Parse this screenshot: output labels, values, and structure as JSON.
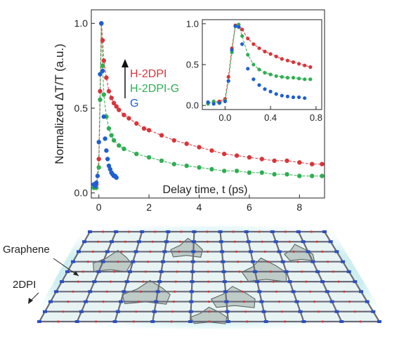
{
  "colors": {
    "H-2DPI": "#d8353a",
    "H-2DPI-G": "#2fae52",
    "G": "#1f5fd0"
  },
  "chart_data": [
    {
      "type": "scatter",
      "xlabel": "Delay time, t (ps)",
      "ylabel": "Normalized ΔT/T (a.u.)",
      "xlim": [
        -0.3,
        9.0
      ],
      "ylim": [
        -0.03,
        1.08
      ],
      "xticks": [
        "0",
        "2",
        "4",
        "6",
        "8"
      ],
      "xtick_values": [
        0,
        2,
        4,
        6,
        8
      ],
      "yticks": [
        "0.0",
        "0.5",
        "1.0"
      ],
      "ytick_values": [
        0,
        0.5,
        1.0
      ],
      "legend": [
        "H-2DPI",
        "H-2DPI-G",
        "G"
      ],
      "legend_position": "upper-middle",
      "series": [
        {
          "name": "H-2DPI",
          "x": [
            -0.2,
            -0.1,
            0.0,
            0.05,
            0.1,
            0.15,
            0.2,
            0.3,
            0.4,
            0.5,
            0.6,
            0.7,
            0.8,
            1.0,
            1.2,
            1.5,
            1.8,
            2.0,
            2.5,
            3.0,
            3.5,
            4.0,
            4.5,
            5.0,
            5.5,
            6.0,
            6.5,
            7.0,
            7.5,
            8.0,
            8.5,
            8.9
          ],
          "y": [
            0.05,
            0.05,
            0.2,
            0.6,
            1.0,
            0.9,
            0.78,
            0.68,
            0.6,
            0.56,
            0.53,
            0.51,
            0.49,
            0.46,
            0.44,
            0.41,
            0.38,
            0.37,
            0.34,
            0.31,
            0.29,
            0.27,
            0.25,
            0.23,
            0.22,
            0.21,
            0.2,
            0.19,
            0.19,
            0.18,
            0.17,
            0.17
          ],
          "fit": true
        },
        {
          "name": "H-2DPI-G",
          "x": [
            -0.2,
            -0.1,
            0.0,
            0.05,
            0.1,
            0.15,
            0.2,
            0.3,
            0.4,
            0.5,
            0.6,
            0.8,
            1.0,
            1.5,
            2.0,
            2.5,
            3.0,
            3.5,
            4.0,
            4.5,
            5.0,
            5.5,
            6.0,
            6.5,
            7.0,
            7.5,
            8.0,
            8.5,
            8.9
          ],
          "y": [
            0.03,
            0.03,
            0.15,
            0.55,
            1.0,
            0.75,
            0.58,
            0.45,
            0.38,
            0.34,
            0.31,
            0.28,
            0.26,
            0.23,
            0.21,
            0.19,
            0.17,
            0.16,
            0.15,
            0.14,
            0.13,
            0.13,
            0.12,
            0.12,
            0.11,
            0.11,
            0.1,
            0.1,
            0.1
          ],
          "fit": true
        },
        {
          "name": "G",
          "x": [
            -0.2,
            -0.15,
            -0.1,
            -0.05,
            0.0,
            0.05,
            0.1,
            0.15,
            0.2,
            0.25,
            0.3,
            0.35,
            0.4,
            0.45,
            0.5,
            0.55,
            0.6,
            0.65,
            0.7
          ],
          "y": [
            0.05,
            0.04,
            0.06,
            0.1,
            0.3,
            0.7,
            1.0,
            0.72,
            0.45,
            0.32,
            0.25,
            0.2,
            0.16,
            0.14,
            0.12,
            0.11,
            0.1,
            0.1,
            0.09
          ],
          "fit": false
        }
      ]
    },
    {
      "type": "scatter",
      "role": "inset",
      "xlabel": "",
      "ylabel": "",
      "xlim": [
        -0.2,
        0.85
      ],
      "ylim": [
        -0.05,
        1.05
      ],
      "xticks": [
        "0.0",
        "0.4",
        "0.8"
      ],
      "xtick_values": [
        0.0,
        0.4,
        0.8
      ],
      "yticks": [
        "0.0",
        "0.5",
        "1.0"
      ],
      "ytick_values": [
        0,
        0.5,
        1.0
      ],
      "series": [
        {
          "name": "H-2DPI",
          "x": [
            -0.15,
            -0.1,
            -0.05,
            0.0,
            0.03,
            0.06,
            0.09,
            0.12,
            0.15,
            0.2,
            0.25,
            0.3,
            0.35,
            0.4,
            0.45,
            0.5,
            0.55,
            0.6,
            0.65,
            0.7,
            0.75
          ],
          "y": [
            0.03,
            0.04,
            0.05,
            0.08,
            0.35,
            0.7,
            0.98,
            0.99,
            0.93,
            0.82,
            0.75,
            0.7,
            0.66,
            0.63,
            0.6,
            0.57,
            0.55,
            0.53,
            0.51,
            0.49,
            0.47
          ],
          "fit": true
        },
        {
          "name": "H-2DPI-G",
          "x": [
            -0.15,
            -0.1,
            -0.05,
            0.0,
            0.03,
            0.06,
            0.09,
            0.12,
            0.15,
            0.2,
            0.25,
            0.3,
            0.35,
            0.4,
            0.45,
            0.5,
            0.55,
            0.6,
            0.65,
            0.7,
            0.75
          ],
          "y": [
            0.02,
            0.05,
            0.03,
            0.06,
            0.3,
            0.65,
            0.97,
            0.99,
            0.85,
            0.62,
            0.5,
            0.44,
            0.4,
            0.38,
            0.36,
            0.35,
            0.34,
            0.34,
            0.33,
            0.32,
            0.32
          ],
          "fit": true
        },
        {
          "name": "G",
          "x": [
            -0.15,
            -0.1,
            -0.05,
            0.0,
            0.03,
            0.06,
            0.09,
            0.12,
            0.15,
            0.2,
            0.25,
            0.3,
            0.35,
            0.4,
            0.45,
            0.5,
            0.55,
            0.6,
            0.65,
            0.7
          ],
          "y": [
            0.04,
            0.02,
            0.03,
            0.05,
            0.3,
            0.68,
            0.97,
            0.96,
            0.75,
            0.45,
            0.32,
            0.25,
            0.2,
            0.17,
            0.14,
            0.12,
            0.11,
            0.1,
            0.1,
            0.09
          ],
          "fit": false
        }
      ]
    }
  ],
  "schematic": {
    "labels": {
      "graphene": "Graphene",
      "polymer": "2DPI"
    }
  }
}
